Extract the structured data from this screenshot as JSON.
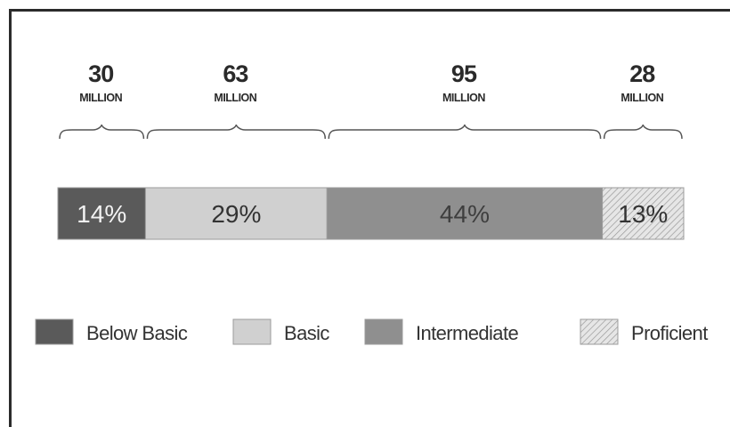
{
  "chart_data": {
    "type": "bar",
    "orientation": "stacked-horizontal",
    "categories": [
      "Below Basic",
      "Basic",
      "Intermediate",
      "Proficient"
    ],
    "values": [
      14,
      29,
      44,
      13
    ],
    "value_labels": [
      "14%",
      "29%",
      "44%",
      "13%"
    ],
    "counts": [
      "30",
      "63",
      "95",
      "28"
    ],
    "count_unit": "MILLION",
    "legend": {
      "position": "bottom",
      "entries": [
        "Below Basic",
        "Basic",
        "Intermediate",
        "Proficient"
      ]
    },
    "colors": [
      "#5a5a5a",
      "#d0d0d0",
      "#8f8f8f",
      "hatched"
    ],
    "label_colors": [
      "#f2f2f2",
      "#333333",
      "#3e3e3e",
      "#333333"
    ],
    "grid": false
  }
}
